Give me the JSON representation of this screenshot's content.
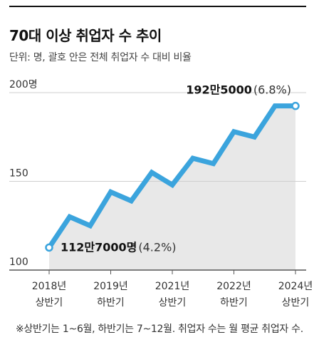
{
  "header": {
    "title": "70대 이상 취업자 수 추이",
    "subtitle": "단위: 명, 괄호 안은 전체 취업자 수 대비 비율"
  },
  "footnote": "※상반기는 1~6월, 하반기는 7~12월. 취업자 수는 월 평균 취업자 수.",
  "colors": {
    "line": "#3ba4dd",
    "area": "#e8e8e8",
    "grid": "#cfcfcf",
    "axis": "#555555"
  },
  "chart_data": {
    "type": "area",
    "x": [
      "2018 상반기",
      "2018 하반기",
      "2019 상반기",
      "2019 하반기",
      "2020 상반기",
      "2020 하반기",
      "2021 상반기",
      "2021 하반기",
      "2022 상반기",
      "2022 하반기",
      "2023 상반기",
      "2023 하반기",
      "2024 상반기"
    ],
    "series": [
      {
        "values": [
          112.7,
          130,
          125,
          144,
          139,
          155,
          148,
          163,
          160,
          178,
          175,
          192.5,
          192.5
        ]
      }
    ],
    "y_unit": "만명",
    "ylim": [
      100,
      200
    ],
    "yticks": [
      {
        "value": 200,
        "label": "200명"
      },
      {
        "value": 150,
        "label": "150"
      },
      {
        "value": 100,
        "label": "100"
      }
    ],
    "xticks": [
      {
        "index": 0,
        "line1": "2018년",
        "line2": "상반기"
      },
      {
        "index": 3,
        "line1": "2019년",
        "line2": "하반기"
      },
      {
        "index": 6,
        "line1": "2021년",
        "line2": "상반기"
      },
      {
        "index": 9,
        "line1": "2022년",
        "line2": "하반기"
      },
      {
        "index": 12,
        "line1": "2024년",
        "line2": "상반기"
      }
    ],
    "annotations": [
      {
        "index": 0,
        "value_text": "112만7000명",
        "pct_text": "(4.2%)"
      },
      {
        "index": 12,
        "value_text": "192만5000",
        "pct_text": "(6.8%)"
      }
    ],
    "grid": true
  }
}
